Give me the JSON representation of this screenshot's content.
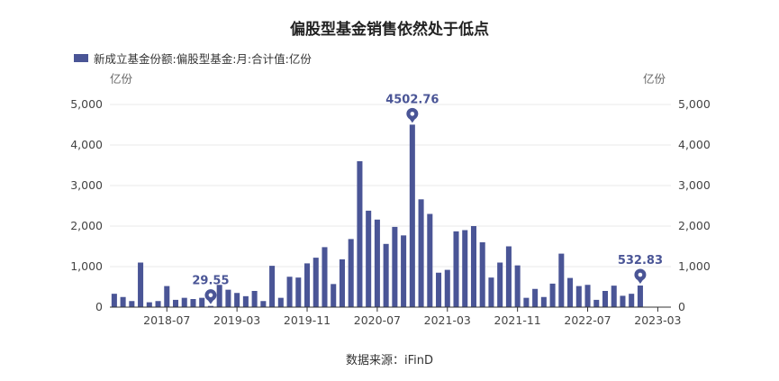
{
  "chart_data": {
    "type": "bar",
    "title": "偏股型基金销售依然处于低点",
    "legend": "新成立基金份额:偏股型基金:月:合计值:亿份",
    "y_unit_left": "亿份",
    "y_unit_right": "亿份",
    "source": "数据来源：iFinD",
    "color": "#4a5596",
    "ylim": [
      0,
      5000
    ],
    "y_ticks": [
      "0",
      "1,000",
      "2,000",
      "3,000",
      "4,000",
      "5,000"
    ],
    "x_tick_labels": [
      "2018-07",
      "2019-03",
      "2019-11",
      "2020-07",
      "2021-03",
      "2021-11",
      "2022-07",
      "2023-03"
    ],
    "categories": [
      "2018-01",
      "2018-02",
      "2018-03",
      "2018-04",
      "2018-05",
      "2018-06",
      "2018-07",
      "2018-08",
      "2018-09",
      "2018-10",
      "2018-11",
      "2018-12",
      "2019-01",
      "2019-02",
      "2019-03",
      "2019-04",
      "2019-05",
      "2019-06",
      "2019-07",
      "2019-08",
      "2019-09",
      "2019-10",
      "2019-11",
      "2019-12",
      "2020-01",
      "2020-02",
      "2020-03",
      "2020-04",
      "2020-05",
      "2020-06",
      "2020-07",
      "2020-08",
      "2020-09",
      "2020-10",
      "2020-11",
      "2020-12",
      "2021-01",
      "2021-02",
      "2021-03",
      "2021-04",
      "2021-05",
      "2021-06",
      "2021-07",
      "2021-08",
      "2021-09",
      "2021-10",
      "2021-11",
      "2021-12",
      "2022-01",
      "2022-02",
      "2022-03",
      "2022-04",
      "2022-05",
      "2022-06",
      "2022-07",
      "2022-08",
      "2022-09",
      "2022-10",
      "2022-11",
      "2022-12",
      "2023-01",
      "2023-02",
      "2023-03",
      "2023-04"
    ],
    "values": [
      330,
      250,
      150,
      1100,
      120,
      150,
      520,
      180,
      230,
      200,
      230,
      29.55,
      550,
      430,
      350,
      270,
      400,
      150,
      1020,
      230,
      750,
      730,
      1080,
      1220,
      1480,
      570,
      1180,
      1680,
      3600,
      2380,
      2160,
      1560,
      1980,
      1770,
      4502.76,
      2660,
      2300,
      850,
      920,
      1870,
      1900,
      2000,
      1600,
      730,
      1100,
      1500,
      1030,
      230,
      450,
      250,
      580,
      1320,
      720,
      520,
      550,
      180,
      400,
      530,
      280,
      330,
      532.83,
      0,
      0,
      0
    ],
    "annotations": [
      {
        "label": "29.55",
        "category": "2018-12",
        "type": "min"
      },
      {
        "label": "4502.76",
        "category": "2020-11",
        "type": "max"
      },
      {
        "label": "532.83",
        "category": "2023-01",
        "type": "last"
      }
    ]
  }
}
